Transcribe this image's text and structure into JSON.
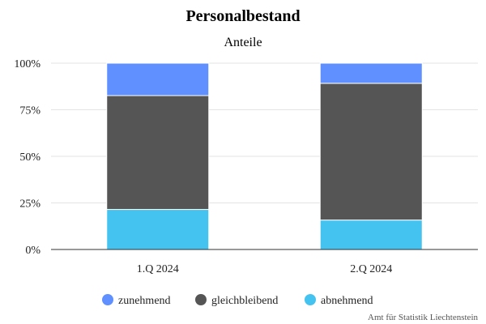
{
  "chart_data": {
    "type": "bar",
    "stacked": true,
    "title": "Personalbestand",
    "subtitle": "Anteile",
    "categories": [
      "1.Q 2024",
      "2.Q 2024"
    ],
    "series": [
      {
        "name": "abnehmend",
        "color": "#45c3f0",
        "values": [
          21.5,
          15.8
        ]
      },
      {
        "name": "gleichbleibend",
        "color": "#555555",
        "values": [
          61.1,
          73.4
        ]
      },
      {
        "name": "zunehmend",
        "color": "#6090ff",
        "values": [
          17.4,
          10.8
        ]
      }
    ],
    "legend_order": [
      "zunehmend",
      "gleichbleibend",
      "abnehmend"
    ],
    "yticks": [
      "0%",
      "25%",
      "50%",
      "75%",
      "100%"
    ],
    "ylim": [
      0,
      100
    ],
    "legend_position": "bottom",
    "grid": true,
    "credit": "Amt für Statistik Liechtenstein"
  }
}
